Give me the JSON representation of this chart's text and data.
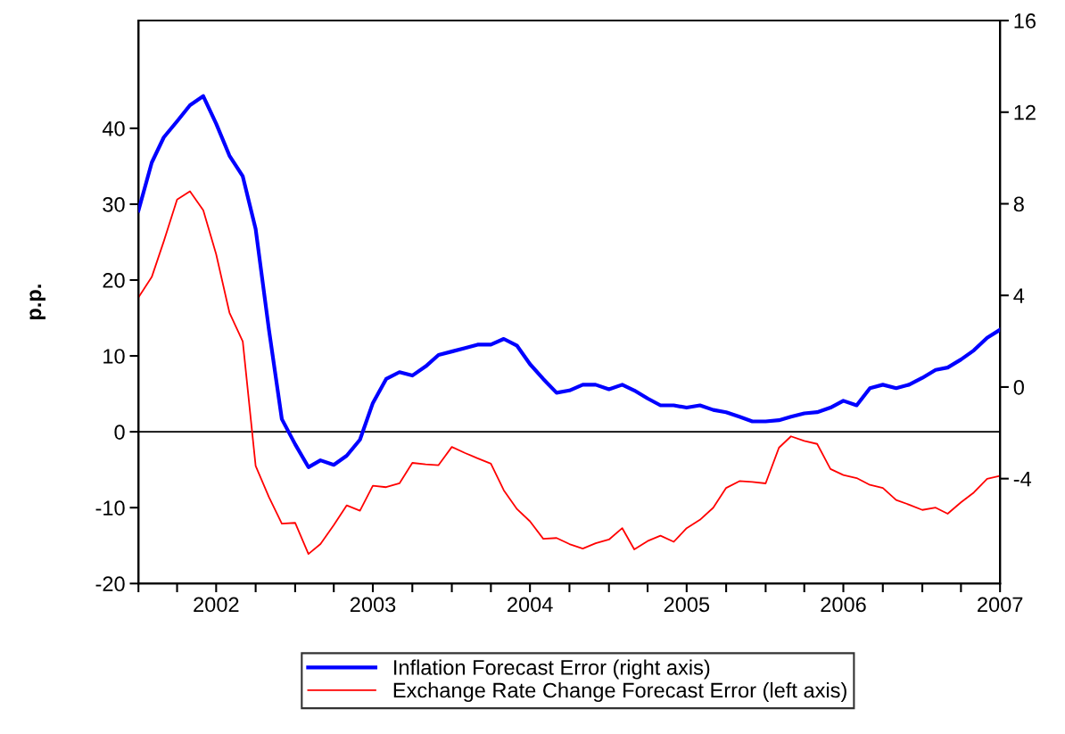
{
  "chart_data": {
    "type": "line",
    "ylabel": "p.p.",
    "x": [
      "2002-01",
      "2002-02",
      "2002-03",
      "2002-04",
      "2002-05",
      "2002-06",
      "2002-07",
      "2002-08",
      "2002-09",
      "2002-10",
      "2002-11",
      "2002-12",
      "2003-01",
      "2003-02",
      "2003-03",
      "2003-04",
      "2003-05",
      "2003-06",
      "2003-07",
      "2003-08",
      "2003-09",
      "2003-10",
      "2003-11",
      "2003-12",
      "2004-01",
      "2004-02",
      "2004-03",
      "2004-04",
      "2004-05",
      "2004-06",
      "2004-07",
      "2004-08",
      "2004-09",
      "2004-10",
      "2004-11",
      "2004-12",
      "2005-01",
      "2005-02",
      "2005-03",
      "2005-04",
      "2005-05",
      "2005-06",
      "2005-07",
      "2005-08",
      "2005-09",
      "2005-10",
      "2005-11",
      "2005-12",
      "2006-01",
      "2006-02",
      "2006-03",
      "2006-04",
      "2006-05",
      "2006-06",
      "2006-07",
      "2006-08",
      "2006-09",
      "2006-10",
      "2006-11",
      "2006-12",
      "2007-01",
      "2007-02",
      "2007-03",
      "2007-04",
      "2007-05",
      "2007-06",
      "2007-07"
    ],
    "series": [
      {
        "name": "Inflation Forecast Error (right axis)",
        "color": "#0000ff",
        "axis": "y2",
        "values": [
          7.7,
          9.8,
          10.9,
          11.6,
          12.3,
          12.7,
          11.5,
          10.1,
          9.2,
          6.9,
          2.5,
          -1.4,
          -2.5,
          -3.5,
          -3.2,
          -3.4,
          -3.0,
          -2.3,
          -0.7,
          0.35,
          0.65,
          0.5,
          0.9,
          1.4,
          1.55,
          1.7,
          1.85,
          1.85,
          2.1,
          1.8,
          1.0,
          0.35,
          -0.25,
          -0.15,
          0.1,
          0.1,
          -0.1,
          0.1,
          -0.15,
          -0.5,
          -0.8,
          -0.8,
          -0.9,
          -0.8,
          -1.0,
          -1.1,
          -1.3,
          -1.5,
          -1.5,
          -1.45,
          -1.3,
          -1.15,
          -1.1,
          -0.9,
          -0.6,
          -0.8,
          -0.05,
          0.1,
          -0.05,
          0.1,
          0.4,
          0.75,
          0.85,
          1.2,
          1.6,
          2.15,
          2.5
        ]
      },
      {
        "name": "Exchange Rate Change Forecast Error (left axis)",
        "color": "#ff0000",
        "values": [
          17.7,
          20.4,
          25.1,
          30.6,
          31.7,
          29.2,
          23.4,
          15.7,
          11.9,
          -4.5,
          -8.6,
          -12.1,
          -12.0,
          -16.1,
          -14.8,
          -12.3,
          -9.7,
          -10.4,
          -7.1,
          -7.3,
          -6.8,
          -4.1,
          -4.3,
          -4.4,
          -2.0,
          -2.8,
          -3.5,
          -4.2,
          -7.7,
          -10.2,
          -11.8,
          -14.1,
          -14.0,
          -14.8,
          -15.4,
          -14.7,
          -14.2,
          -12.7,
          -15.5,
          -14.4,
          -13.7,
          -14.5,
          -12.7,
          -11.6,
          -10.0,
          -7.4,
          -6.5,
          -6.6,
          -6.8,
          -2.1,
          -0.6,
          -1.2,
          -1.6,
          -4.9,
          -5.7,
          -6.1,
          -7.0,
          -7.4,
          -9.0,
          -9.6,
          -10.3,
          -10.0,
          -10.8,
          -9.3,
          -8.0,
          -6.2,
          -5.8
        ]
      }
    ],
    "xlim": [
      "2002-01",
      "2007-07"
    ],
    "xticks": [
      {
        "value": "2002-01",
        "label": null
      },
      {
        "value": "2002-04",
        "label": null
      },
      {
        "value": "2002-07",
        "label": "2002"
      },
      {
        "value": "2002-10",
        "label": null
      },
      {
        "value": "2003-01",
        "label": null
      },
      {
        "value": "2003-04",
        "label": null
      },
      {
        "value": "2003-07",
        "label": "2003"
      },
      {
        "value": "2003-10",
        "label": null
      },
      {
        "value": "2004-01",
        "label": null
      },
      {
        "value": "2004-04",
        "label": null
      },
      {
        "value": "2004-07",
        "label": "2004"
      },
      {
        "value": "2004-10",
        "label": null
      },
      {
        "value": "2005-01",
        "label": null
      },
      {
        "value": "2005-04",
        "label": null
      },
      {
        "value": "2005-07",
        "label": "2005"
      },
      {
        "value": "2005-10",
        "label": null
      },
      {
        "value": "2006-01",
        "label": null
      },
      {
        "value": "2006-04",
        "label": null
      },
      {
        "value": "2006-07",
        "label": "2006"
      },
      {
        "value": "2006-10",
        "label": null
      },
      {
        "value": "2007-01",
        "label": null
      },
      {
        "value": "2007-04",
        "label": null
      },
      {
        "value": "2007-07",
        "label": "2007"
      }
    ],
    "ylim": [
      -20,
      54.2
    ],
    "yticks": [
      -20,
      -10,
      0,
      10,
      20,
      30,
      40
    ],
    "y2lim": [
      -8.58,
      16
    ],
    "y2ticks": [
      -4,
      0,
      4,
      8,
      12,
      16
    ],
    "ref_lines": [
      {
        "axis": "y",
        "value": 0,
        "color": "#000000"
      }
    ],
    "grid": false,
    "legend": "bottom",
    "marker": "none",
    "line_style": "solid"
  }
}
